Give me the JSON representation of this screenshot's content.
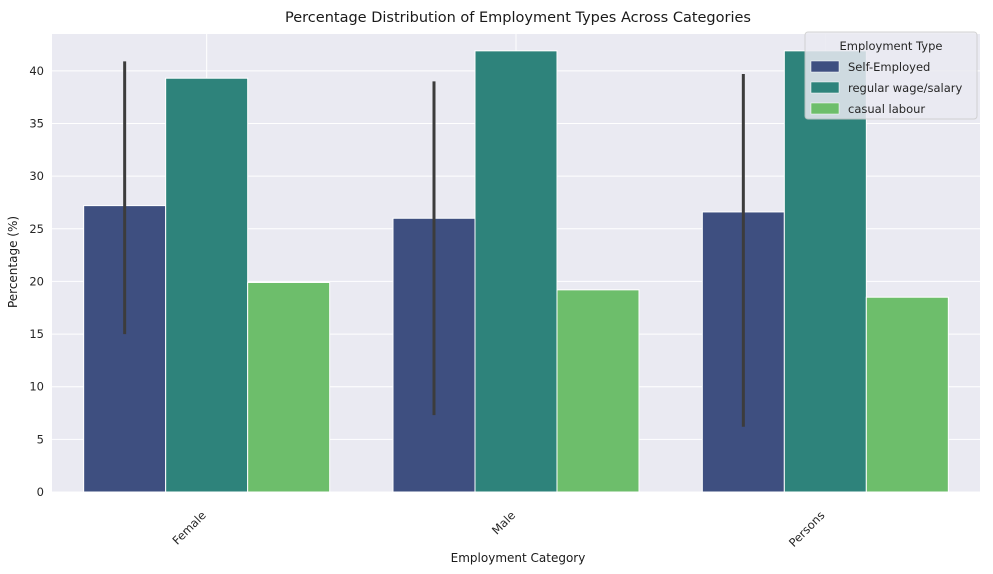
{
  "chart_data": {
    "type": "bar",
    "title": "Percentage Distribution of Employment Types Across Categories",
    "xlabel": "Employment Category",
    "ylabel": "Percentage (%)",
    "categories": [
      "Female",
      "Male",
      "Persons"
    ],
    "ylim": [
      0,
      43.5
    ],
    "yticks": [
      0,
      5,
      10,
      15,
      20,
      25,
      30,
      35,
      40
    ],
    "grid": true,
    "legend": {
      "title": "Employment Type",
      "position": "top-right"
    },
    "series": [
      {
        "name": "Self-Employed",
        "color": "#3e4f80",
        "values": [
          27.2,
          26.0,
          26.6
        ],
        "error_low": [
          15.0,
          7.3,
          6.2
        ],
        "error_high": [
          40.9,
          39.0,
          39.7
        ]
      },
      {
        "name": "regular wage/salary",
        "color": "#2e837b",
        "values": [
          39.3,
          41.9,
          41.9
        ]
      },
      {
        "name": "casual labour",
        "color": "#6dbe6b",
        "values": [
          19.9,
          19.2,
          18.5
        ]
      }
    ]
  }
}
